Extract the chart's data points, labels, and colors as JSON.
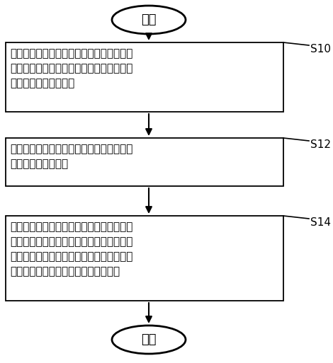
{
  "bg_color": "#ffffff",
  "border_color": "#000000",
  "text_color": "#000000",
  "arrow_color": "#000000",
  "start_end_text": [
    "开始",
    "结束"
  ],
  "box_texts": [
    "通过第一温度传感器以及第二温度传感器定\n时获得所述腔膜透析仪的加热托盘上透析液\n袋中透析液的温度参数",
    "根据所述腔膜透析仪所处的工作状态，分别\n确定对应的监测逻辑",
    "根据所述腔膜透析仪所处的工作状态所对应\n的监测逻辑，对所述第一温度传感器以及第\n二温度传感器所获得的透析液的温度参数进\n行判断，并在温度参数时进行报警提示"
  ],
  "step_labels": [
    "S10",
    "S12",
    "S14"
  ],
  "font_size_box": 11,
  "font_size_start_end": 13,
  "font_size_step": 11,
  "figsize": [
    4.7,
    5.13
  ],
  "dpi": 100
}
